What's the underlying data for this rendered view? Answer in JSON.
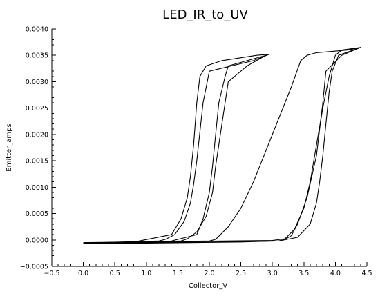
{
  "chart_data": {
    "type": "line",
    "title": "LED_IR_to_UV",
    "xlabel": "Collector_V",
    "ylabel": "Emitter_amps",
    "xlim": [
      -0.5,
      4.5
    ],
    "ylim": [
      -0.0005,
      0.004
    ],
    "x_ticks": [
      "−0.5",
      "0.0",
      "0.5",
      "1.0",
      "1.5",
      "2.0",
      "2.5",
      "3.0",
      "3.5",
      "4.0",
      "4.5"
    ],
    "y_ticks": [
      "−0.0005",
      "0.0000",
      "0.0005",
      "0.0010",
      "0.0015",
      "0.0020",
      "0.0025",
      "0.0030",
      "0.0035",
      "0.0040"
    ],
    "grid": false,
    "legend": false,
    "line_color": "#000000",
    "series": [
      {
        "x": [
          0.0,
          0.6,
          1.2,
          1.3,
          1.45,
          1.6,
          1.7,
          1.75,
          1.8,
          1.9,
          2.0,
          2.7,
          2.95,
          2.75,
          2.2,
          1.95,
          1.85,
          1.8,
          1.75,
          1.7,
          1.65,
          1.55,
          1.4,
          0.8,
          0.0
        ],
        "y": [
          -6e-05,
          -4e-05,
          -2e-05,
          1e-05,
          0.0001,
          0.00035,
          0.0007,
          0.00105,
          0.0015,
          0.0026,
          0.0032,
          0.0034,
          0.00352,
          0.0035,
          0.0034,
          0.0033,
          0.0031,
          0.0026,
          0.0018,
          0.0012,
          0.0008,
          0.0004,
          0.0001,
          -4e-05,
          -6e-05
        ]
      },
      {
        "x": [
          0.0,
          0.7,
          1.55,
          1.65,
          1.8,
          1.95,
          2.05,
          2.1,
          2.2,
          2.3,
          2.6,
          2.9,
          2.6,
          2.3,
          2.25,
          2.15,
          2.1,
          2.05,
          2.0,
          1.9,
          1.8,
          1.3,
          0.0
        ],
        "y": [
          -7e-05,
          -5e-05,
          -2e-05,
          2e-05,
          0.00015,
          0.00045,
          0.0009,
          0.0014,
          0.0022,
          0.003,
          0.0033,
          0.0035,
          0.0034,
          0.0033,
          0.0031,
          0.0026,
          0.002,
          0.0014,
          0.0009,
          0.0004,
          0.0001,
          -5e-05,
          -7e-05
        ]
      },
      {
        "x": [
          0.0,
          1.0,
          2.0,
          2.1,
          2.3,
          2.5,
          2.7,
          2.9,
          3.1,
          3.3,
          3.45,
          3.55,
          3.7,
          4.2,
          4.4,
          4.1,
          3.85,
          3.8,
          3.7,
          3.55,
          3.4,
          3.3,
          3.2,
          3.1,
          2.5,
          1.0,
          0.0
        ],
        "y": [
          -6e-05,
          -4e-05,
          -2e-05,
          1e-05,
          0.00025,
          0.0006,
          0.0011,
          0.0017,
          0.0023,
          0.0029,
          0.0034,
          0.0035,
          0.00355,
          0.0036,
          0.00365,
          0.0035,
          0.0032,
          0.0026,
          0.0016,
          0.0008,
          0.0003,
          8e-05,
          1e-05,
          -2e-05,
          -4e-05,
          -6e-05,
          -6e-05
        ]
      },
      {
        "x": [
          0.0,
          1.5,
          3.0,
          3.2,
          3.35,
          3.5,
          3.6,
          3.7,
          3.8,
          3.9,
          4.0,
          4.1,
          4.4,
          4.05,
          3.95,
          3.9,
          3.85,
          3.8,
          3.75,
          3.7,
          3.6,
          3.4,
          3.1,
          2.0,
          0.0
        ],
        "y": [
          -5e-05,
          -3e-05,
          -1e-05,
          2e-05,
          0.0002,
          0.0006,
          0.0011,
          0.0018,
          0.0025,
          0.0031,
          0.0035,
          0.0036,
          0.00365,
          0.0035,
          0.0032,
          0.0028,
          0.0022,
          0.0016,
          0.0011,
          0.0007,
          0.0003,
          5e-05,
          -2e-05,
          -4e-05,
          -5e-05
        ]
      }
    ]
  }
}
